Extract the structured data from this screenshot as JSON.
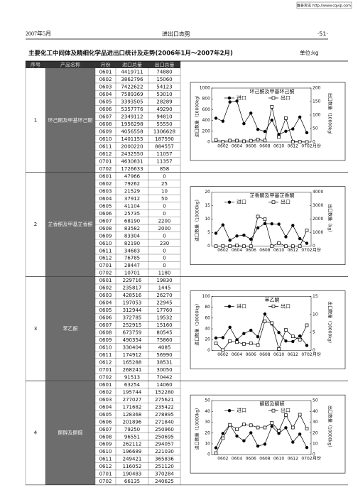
{
  "header": {
    "watermark": "维普资讯 http://www.cqvip.com",
    "date": "2007年5月",
    "section": "进出口态势",
    "page": "·51·"
  },
  "title": "主要化工中间体及精细化学品进出口统计及走势(2006年1月～2007年2月)",
  "unit": "单位:kg",
  "table": {
    "columns": [
      "序号",
      "产品名称",
      "月份",
      "进口总量",
      "出口总量"
    ],
    "groups": [
      {
        "index": "1",
        "name": "环己酮及甲基环己酮",
        "rows": [
          [
            "0601",
            4419711,
            74880
          ],
          [
            "0602",
            3862796,
            15060
          ],
          [
            "0603",
            7422622,
            54123
          ],
          [
            "0604",
            7589369,
            53010
          ],
          [
            "0605",
            3393505,
            28289
          ],
          [
            "0606",
            5357776,
            49290
          ],
          [
            "0607",
            2349112,
            94810
          ],
          [
            "0608",
            1956298,
            55550
          ],
          [
            "0609",
            4056558,
            1306628
          ],
          [
            "0610",
            1401155,
            187590
          ],
          [
            "0611",
            2000220,
            884557
          ],
          [
            "0612",
            2432550,
            11057
          ],
          [
            "0701",
            4630831,
            11357
          ],
          [
            "0702",
            1726633,
            858
          ]
        ]
      },
      {
        "index": "2",
        "name": "芷香酮及甲基芷香酮",
        "rows": [
          [
            "0601",
            47966,
            0
          ],
          [
            "0602",
            79262,
            25
          ],
          [
            "0603",
            21529,
            10
          ],
          [
            "0604",
            37912,
            50
          ],
          [
            "0605",
            41104,
            0
          ],
          [
            "0606",
            25735,
            0
          ],
          [
            "0607",
            68190,
            2200
          ],
          [
            "0608",
            83582,
            2000
          ],
          [
            "0609",
            83304,
            0
          ],
          [
            "0610",
            82190,
            230
          ],
          [
            "0611",
            34683,
            0
          ],
          [
            "0612",
            76785,
            0
          ],
          [
            "0701",
            28447,
            0
          ],
          [
            "0702",
            10701,
            1180
          ]
        ]
      },
      {
        "index": "3",
        "name": "苯乙酮",
        "rows": [
          [
            "0601",
            229716,
            19830
          ],
          [
            "0602",
            235817,
            1445
          ],
          [
            "0603",
            428516,
            26270
          ],
          [
            "0604",
            197053,
            22945
          ],
          [
            "0605",
            312944,
            17760
          ],
          [
            "0606",
            372785,
            19532
          ],
          [
            "0607",
            252915,
            15160
          ],
          [
            "0608",
            673759,
            80545
          ],
          [
            "0609",
            490354,
            75860
          ],
          [
            "0610",
            330404,
            4085
          ],
          [
            "0611",
            174912,
            56990
          ],
          [
            "0612",
            165288,
            38531
          ],
          [
            "0701",
            268241,
            30050
          ],
          [
            "0702",
            91513,
            70442
          ]
        ]
      },
      {
        "index": "4",
        "name": "酮醇及酮醛",
        "rows": [
          [
            "0601",
            63254,
            14060
          ],
          [
            "0602",
            195744,
            152280
          ],
          [
            "0603",
            277027,
            275621
          ],
          [
            "0604",
            171682,
            235422
          ],
          [
            "0605",
            128368,
            278895
          ],
          [
            "0606",
            201896,
            271840
          ],
          [
            "0607",
            79250,
            250960
          ],
          [
            "0608",
            96551,
            250695
          ],
          [
            "0609",
            262112,
            294057
          ],
          [
            "0610",
            196689,
            221030
          ],
          [
            "0611",
            249421,
            365836
          ],
          [
            "0612",
            116052,
            251120
          ],
          [
            "0701",
            190483,
            370284
          ],
          [
            "0702",
            66135,
            240625
          ]
        ]
      }
    ]
  },
  "chart_data": [
    {
      "type": "line",
      "title": "环己酮及甲基环己酮",
      "x_label": "月份",
      "y_label": "进口数量（10000kg）",
      "y2_label": "出口数量（10000kg）",
      "categories": [
        null,
        "0602",
        null,
        "0604",
        null,
        "0606",
        null,
        "0608",
        null,
        "0610",
        null,
        "0612",
        null,
        "0702"
      ],
      "ylim": [
        0,
        1000
      ],
      "yticks": [
        0,
        200,
        400,
        600,
        800,
        1000
      ],
      "y2lim": [
        0,
        200
      ],
      "y2ticks": [
        0,
        50,
        100,
        150,
        200
      ],
      "series": [
        {
          "name": "进口",
          "color": "#000000",
          "marker": "circle",
          "values": [
            442,
            386,
            742,
            759,
            339,
            536,
            235,
            196,
            406,
            140,
            200,
            243,
            463,
            173
          ]
        },
        {
          "name": "出口",
          "color": "#000000",
          "marker": "square",
          "axis": "y2",
          "values": [
            7.5,
            1.5,
            5.4,
            5.3,
            2.8,
            4.9,
            9.5,
            5.6,
            130.7,
            18.8,
            88.5,
            1.1,
            1.1,
            0.1
          ]
        }
      ]
    },
    {
      "type": "line",
      "title": "芷香酮及甲基芷香酮",
      "x_label": "月份",
      "y_label": "进口数量（10000kg）",
      "y2_label": "出口数量（kg）",
      "categories": [
        null,
        "0602",
        null,
        "0604",
        null,
        "0606",
        null,
        "0608",
        null,
        "0610",
        null,
        "0612",
        null,
        "0702"
      ],
      "ylim": [
        0,
        20
      ],
      "yticks": [
        0,
        5,
        10,
        15,
        20
      ],
      "y2lim": [
        0,
        4000
      ],
      "y2ticks": [
        0,
        1000,
        2000,
        3000,
        4000
      ],
      "series": [
        {
          "name": "进口",
          "color": "#000000",
          "marker": "circle",
          "values": [
            4.8,
            7.9,
            2.2,
            3.8,
            4.1,
            2.6,
            6.8,
            8.4,
            8.3,
            8.2,
            3.5,
            7.7,
            2.8,
            1.1
          ]
        },
        {
          "name": "出口",
          "color": "#000000",
          "marker": "square",
          "axis": "y2",
          "values": [
            0,
            25,
            10,
            50,
            0,
            0,
            2200,
            2000,
            0,
            230,
            0,
            0,
            0,
            1180
          ]
        }
      ]
    },
    {
      "type": "line",
      "title": "苯乙酮",
      "x_label": "月份",
      "y_label": "进口数量（10000kg）",
      "y2_label": "出口数量（10000kg）",
      "categories": [
        null,
        "0602",
        null,
        "0604",
        null,
        "0606",
        null,
        "0608",
        null,
        "0610",
        null,
        "0612",
        null,
        "0702"
      ],
      "ylim": [
        0,
        100
      ],
      "yticks": [
        0,
        20,
        40,
        60,
        80,
        100
      ],
      "y2lim": [
        0,
        15
      ],
      "y2ticks": [
        0,
        5,
        10,
        15
      ],
      "series": [
        {
          "name": "进口",
          "color": "#000000",
          "marker": "circle",
          "values": [
            23.0,
            23.6,
            42.9,
            19.7,
            31.3,
            37.3,
            25.3,
            67.4,
            49.0,
            33.0,
            17.5,
            16.5,
            26.8,
            9.2
          ]
        },
        {
          "name": "出口",
          "color": "#000000",
          "marker": "square",
          "axis": "y2",
          "values": [
            2.0,
            0.1,
            2.6,
            2.3,
            1.8,
            2.0,
            1.5,
            8.1,
            7.6,
            0.4,
            5.7,
            3.9,
            3.0,
            7.0
          ]
        }
      ]
    },
    {
      "type": "line",
      "title": "酮醇及酮醛",
      "x_label": "月份",
      "y_label": "进口数量（10000kg）",
      "y2_label": "出口数量（10000kg）",
      "categories": [
        null,
        "0602",
        null,
        "0604",
        null,
        "0606",
        null,
        "0608",
        null,
        "0610",
        null,
        "0612",
        null,
        "0702"
      ],
      "ylim": [
        0,
        50
      ],
      "yticks": [
        0,
        10,
        20,
        30,
        40,
        50
      ],
      "y2lim": [
        0,
        50
      ],
      "y2ticks": [
        0,
        10,
        20,
        30,
        40,
        50
      ],
      "series": [
        {
          "name": "进口",
          "color": "#000000",
          "marker": "circle",
          "values": [
            6.3,
            19.6,
            27.7,
            17.2,
            12.8,
            20.2,
            7.9,
            9.7,
            26.2,
            19.7,
            24.9,
            11.6,
            19.0,
            6.6
          ]
        },
        {
          "name": "出口",
          "color": "#000000",
          "marker": "square",
          "axis": "y2",
          "values": [
            1.4,
            15.2,
            27.6,
            23.5,
            27.9,
            27.2,
            25.1,
            25.1,
            29.4,
            22.1,
            36.6,
            25.1,
            37.0,
            24.1
          ]
        }
      ]
    }
  ]
}
